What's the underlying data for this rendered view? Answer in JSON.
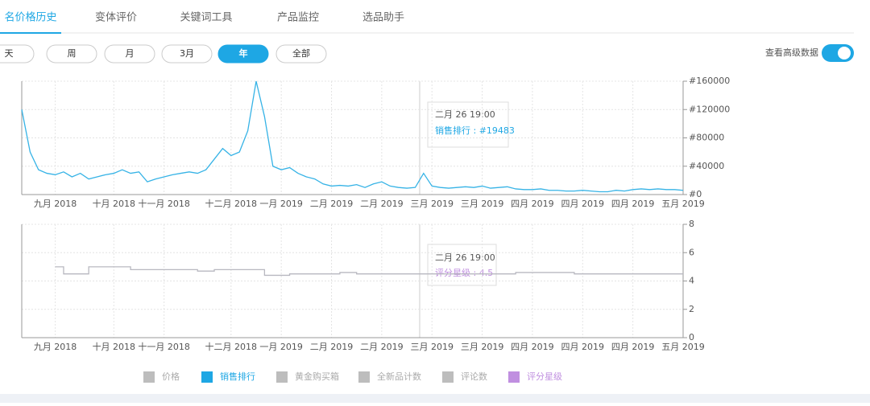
{
  "tabs": [
    "名价格历史",
    "变体评价",
    "关键词工具",
    "产品监控",
    "选品助手"
  ],
  "ranges": [
    "天",
    "周",
    "月",
    "3月",
    "年",
    "全部"
  ],
  "toggle_label": "查看高级数据",
  "legend": [
    {
      "name": "价格",
      "color": "#bdbdbd"
    },
    {
      "name": "销售排行",
      "color": "#1ea7e4"
    },
    {
      "name": "黄金购买箱",
      "color": "#bdbdbd"
    },
    {
      "name": "全新品计数",
      "color": "#bdbdbd"
    },
    {
      "name": "评论数",
      "color": "#bdbdbd"
    },
    {
      "name": "评分星级",
      "color": "#c08fe0"
    }
  ],
  "tooltips": [
    {
      "time": "二月 26 19:00",
      "text": "销售排行 : #19483"
    },
    {
      "time": "二月 26 19:00",
      "text": "评分星级 : 4.5"
    }
  ],
  "chart_data": [
    {
      "type": "line",
      "color": "#36b3e6",
      "grid": true,
      "categories": [
        null,
        null,
        null,
        null,
        "九月 2018",
        null,
        null,
        null,
        null,
        null,
        null,
        "十月 2018",
        null,
        null,
        null,
        null,
        null,
        "十一月 2018",
        null,
        null,
        null,
        null,
        null,
        null,
        null,
        "十二月 2018",
        null,
        null,
        null,
        null,
        null,
        "一月 2019",
        null,
        null,
        null,
        null,
        null,
        "二月 2019",
        null,
        null,
        null,
        null,
        null,
        "二月 2019",
        null,
        null,
        null,
        null,
        null,
        "三月 2019",
        null,
        null,
        null,
        null,
        null,
        "三月 2019",
        null,
        null,
        null,
        null,
        null,
        "四月 2019",
        null,
        null,
        null,
        null,
        null,
        "四月 2019",
        null,
        null,
        null,
        null,
        null,
        "四月 2019",
        null,
        null,
        null,
        null,
        null,
        "五月 2019"
      ],
      "values": [
        120000,
        60000,
        35000,
        30000,
        28000,
        32000,
        25000,
        30000,
        22000,
        25000,
        28000,
        30000,
        35000,
        30000,
        32000,
        18000,
        22000,
        25000,
        28000,
        30000,
        32000,
        30000,
        35000,
        50000,
        65000,
        55000,
        60000,
        90000,
        160000,
        110000,
        40000,
        35000,
        38000,
        30000,
        25000,
        22000,
        15000,
        12000,
        13000,
        12000,
        14000,
        10000,
        15000,
        18000,
        12000,
        10000,
        9000,
        10000,
        30000,
        12000,
        10000,
        9000,
        10000,
        11000,
        10000,
        12000,
        9000,
        10000,
        11000,
        8000,
        7000,
        7000,
        8000,
        6000,
        6000,
        5000,
        5000,
        6000,
        5000,
        4000,
        4000,
        6000,
        5000,
        7000,
        8000,
        7000,
        8000,
        7000,
        7000,
        6000
      ],
      "ylim": [
        0,
        160000
      ],
      "yticks": [
        {
          "value": 0,
          "label": "#0"
        },
        {
          "value": 40000,
          "label": "#40000"
        },
        {
          "value": 80000,
          "label": "#80000"
        },
        {
          "value": 120000,
          "label": "#120000"
        },
        {
          "value": 160000,
          "label": "#160000"
        }
      ]
    },
    {
      "type": "line",
      "color": "#b8b8c0",
      "grid": true,
      "categories": [
        null,
        null,
        null,
        null,
        "九月 2018",
        null,
        null,
        null,
        null,
        null,
        null,
        "十月 2018",
        null,
        null,
        null,
        null,
        null,
        "十一月 2018",
        null,
        null,
        null,
        null,
        null,
        null,
        null,
        "十二月 2018",
        null,
        null,
        null,
        null,
        null,
        "一月 2019",
        null,
        null,
        null,
        null,
        null,
        "二月 2019",
        null,
        null,
        null,
        null,
        null,
        "二月 2019",
        null,
        null,
        null,
        null,
        null,
        "三月 2019",
        null,
        null,
        null,
        null,
        null,
        "三月 2019",
        null,
        null,
        null,
        null,
        null,
        "四月 2019",
        null,
        null,
        null,
        null,
        null,
        "四月 2019",
        null,
        null,
        null,
        null,
        null,
        "四月 2019",
        null,
        null,
        null,
        null,
        null,
        "五月 2019"
      ],
      "values": [
        null,
        null,
        null,
        null,
        5,
        4.5,
        4.5,
        4.5,
        5,
        5,
        5,
        5,
        5,
        4.8,
        4.8,
        4.8,
        4.8,
        4.8,
        4.8,
        4.8,
        4.8,
        4.7,
        4.7,
        4.8,
        4.8,
        4.8,
        4.8,
        4.8,
        4.8,
        4.4,
        4.4,
        4.4,
        4.5,
        4.5,
        4.5,
        4.5,
        4.5,
        4.5,
        4.6,
        4.6,
        4.5,
        4.5,
        4.5,
        4.5,
        4.5,
        4.5,
        4.5,
        4.5,
        4.5,
        4.5,
        4.5,
        4.5,
        4.5,
        4.5,
        4.5,
        4.5,
        4.5,
        4.5,
        4.5,
        4.6,
        4.6,
        4.6,
        4.6,
        4.6,
        4.6,
        4.6,
        4.5,
        4.5,
        4.5,
        4.5,
        4.5,
        4.5,
        4.5,
        4.5,
        4.5,
        4.5,
        4.5,
        4.5,
        4.5,
        4.5
      ],
      "ylim": [
        0,
        8
      ],
      "yticks": [
        0,
        2,
        4,
        6,
        8
      ]
    }
  ]
}
